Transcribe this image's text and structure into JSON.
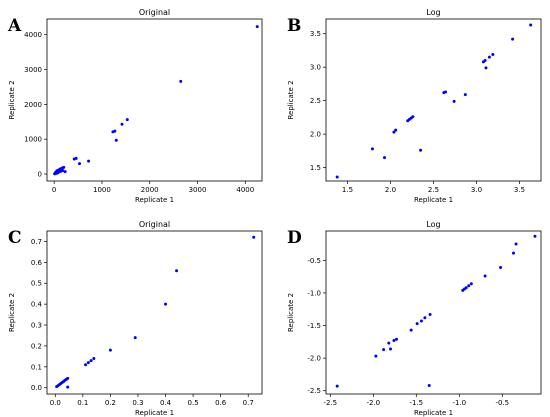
{
  "chart_data": [
    {
      "panel": "A",
      "type": "scatter",
      "title": "Original",
      "xlabel": "Replicate 1",
      "ylabel": "Replicate 2",
      "xlim": [
        -150,
        4350
      ],
      "ylim": [
        -200,
        4450
      ],
      "xticks": [
        0,
        1000,
        2000,
        3000,
        4000
      ],
      "yticks": [
        0,
        1000,
        2000,
        3000,
        4000
      ],
      "grid": false,
      "marker_color": "#0000ff",
      "points": [
        [
          10,
          5
        ],
        [
          25,
          40
        ],
        [
          40,
          20
        ],
        [
          55,
          90
        ],
        [
          70,
          30
        ],
        [
          85,
          110
        ],
        [
          100,
          60
        ],
        [
          120,
          140
        ],
        [
          140,
          80
        ],
        [
          160,
          170
        ],
        [
          180,
          100
        ],
        [
          200,
          190
        ],
        [
          230,
          70
        ],
        [
          420,
          430
        ],
        [
          460,
          450
        ],
        [
          530,
          300
        ],
        [
          720,
          370
        ],
        [
          1230,
          1210
        ],
        [
          1270,
          1230
        ],
        [
          1300,
          970
        ],
        [
          1420,
          1430
        ],
        [
          1530,
          1560
        ],
        [
          2650,
          2660
        ],
        [
          4250,
          4230
        ]
      ]
    },
    {
      "panel": "B",
      "type": "scatter",
      "title": "Log",
      "xlabel": "Replicate 1",
      "ylabel": "Replicate 2",
      "xlim": [
        1.25,
        3.75
      ],
      "ylim": [
        1.3,
        3.72
      ],
      "xticks": [
        1.5,
        2.0,
        2.5,
        3.0,
        3.5
      ],
      "yticks": [
        1.5,
        2.0,
        2.5,
        3.0,
        3.5
      ],
      "grid": false,
      "marker_color": "#0000ff",
      "points": [
        [
          1.38,
          1.36
        ],
        [
          1.79,
          1.78
        ],
        [
          1.93,
          1.65
        ],
        [
          2.04,
          2.03
        ],
        [
          2.06,
          2.06
        ],
        [
          2.2,
          2.2
        ],
        [
          2.22,
          2.22
        ],
        [
          2.24,
          2.24
        ],
        [
          2.26,
          2.26
        ],
        [
          2.35,
          1.76
        ],
        [
          2.62,
          2.62
        ],
        [
          2.64,
          2.63
        ],
        [
          2.74,
          2.49
        ],
        [
          2.87,
          2.59
        ],
        [
          3.08,
          3.08
        ],
        [
          3.1,
          3.1
        ],
        [
          3.11,
          2.99
        ],
        [
          3.15,
          3.15
        ],
        [
          3.19,
          3.19
        ],
        [
          3.42,
          3.42
        ],
        [
          3.63,
          3.63
        ]
      ]
    },
    {
      "panel": "C",
      "type": "scatter",
      "title": "Original",
      "xlabel": "Replicate 1",
      "ylabel": "Replicate 2",
      "xlim": [
        -0.03,
        0.75
      ],
      "ylim": [
        -0.03,
        0.75
      ],
      "xticks": [
        0.0,
        0.1,
        0.2,
        0.3,
        0.4,
        0.5,
        0.6,
        0.7
      ],
      "yticks": [
        0.0,
        0.1,
        0.2,
        0.3,
        0.4,
        0.5,
        0.6,
        0.7
      ],
      "grid": false,
      "marker_color": "#0000ff",
      "points": [
        [
          0.005,
          0.005
        ],
        [
          0.01,
          0.01
        ],
        [
          0.015,
          0.015
        ],
        [
          0.02,
          0.02
        ],
        [
          0.025,
          0.025
        ],
        [
          0.03,
          0.03
        ],
        [
          0.035,
          0.035
        ],
        [
          0.04,
          0.04
        ],
        [
          0.045,
          0.045
        ],
        [
          0.045,
          0.003
        ],
        [
          0.11,
          0.11
        ],
        [
          0.12,
          0.12
        ],
        [
          0.13,
          0.13
        ],
        [
          0.14,
          0.14
        ],
        [
          0.2,
          0.18
        ],
        [
          0.29,
          0.24
        ],
        [
          0.4,
          0.4
        ],
        [
          0.44,
          0.56
        ],
        [
          0.72,
          0.72
        ]
      ]
    },
    {
      "panel": "D",
      "type": "scatter",
      "title": "Log",
      "xlabel": "Replicate 1",
      "ylabel": "Replicate 2",
      "xlim": [
        -2.55,
        -0.05
      ],
      "ylim": [
        -2.55,
        -0.05
      ],
      "xticks": [
        -2.5,
        -2.0,
        -1.5,
        -1.0,
        -0.5
      ],
      "yticks": [
        -2.5,
        -2.0,
        -1.5,
        -1.0,
        -0.5
      ],
      "grid": false,
      "marker_color": "#0000ff",
      "points": [
        [
          -2.42,
          -2.43
        ],
        [
          -1.97,
          -1.97
        ],
        [
          -1.88,
          -1.87
        ],
        [
          -1.82,
          -1.77
        ],
        [
          -1.8,
          -1.86
        ],
        [
          -1.76,
          -1.73
        ],
        [
          -1.73,
          -1.71
        ],
        [
          -1.56,
          -1.57
        ],
        [
          -1.49,
          -1.47
        ],
        [
          -1.44,
          -1.43
        ],
        [
          -1.4,
          -1.38
        ],
        [
          -1.35,
          -2.42
        ],
        [
          -1.34,
          -1.33
        ],
        [
          -0.96,
          -0.96
        ],
        [
          -0.94,
          -0.94
        ],
        [
          -0.92,
          -0.92
        ],
        [
          -0.89,
          -0.89
        ],
        [
          -0.86,
          -0.86
        ],
        [
          -0.7,
          -0.74
        ],
        [
          -0.52,
          -0.61
        ],
        [
          -0.37,
          -0.39
        ],
        [
          -0.34,
          -0.25
        ],
        [
          -0.12,
          -0.13
        ]
      ]
    }
  ]
}
